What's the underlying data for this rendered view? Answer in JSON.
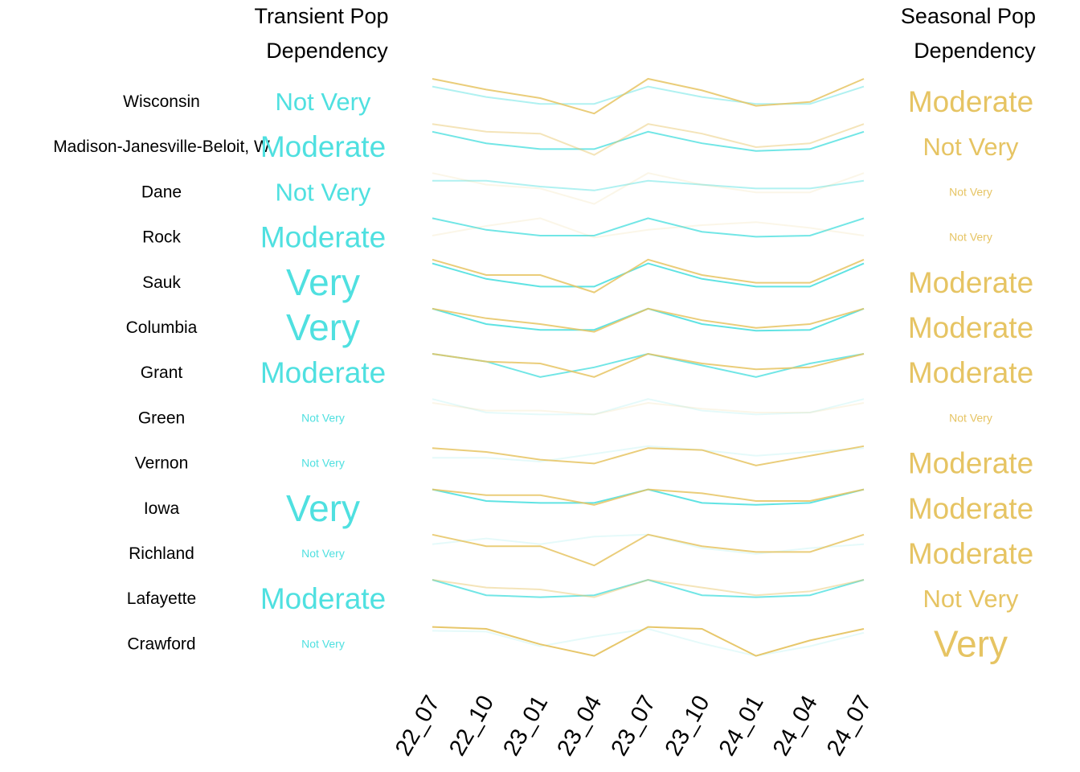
{
  "chart_data": {
    "type": "line",
    "headers": {
      "transient": [
        "Transient Pop",
        "Dependency"
      ],
      "seasonal": [
        "Seasonal Pop",
        "Dependency"
      ]
    },
    "colors": {
      "transient": "#4fe0e0",
      "seasonal": "#e6c463"
    },
    "x": [
      "22_07",
      "22_10",
      "23_01",
      "23_04",
      "23_07",
      "23_10",
      "24_01",
      "24_04",
      "24_07"
    ],
    "rows": [
      {
        "name": "Wisconsin",
        "transient_level": "Not Very",
        "seasonal_level": "Moderate",
        "transient": [
          0.8,
          0.53,
          0.35,
          0.35,
          0.8,
          0.53,
          0.35,
          0.35,
          0.8
        ],
        "seasonal": [
          1.0,
          0.72,
          0.5,
          0.1,
          1.0,
          0.7,
          0.3,
          0.4,
          1.0
        ]
      },
      {
        "name": "Madison-Janesville-Beloit, W",
        "transient_level": "Moderate",
        "seasonal_level": "Not Very",
        "transient": [
          0.8,
          0.5,
          0.35,
          0.35,
          0.8,
          0.5,
          0.3,
          0.35,
          0.8
        ],
        "seasonal": [
          1.0,
          0.8,
          0.75,
          0.2,
          1.0,
          0.75,
          0.4,
          0.5,
          1.0
        ]
      },
      {
        "name": "Dane",
        "transient_level": "Not Very",
        "seasonal_level": "Not Very",
        "transient": [
          0.7,
          0.7,
          0.55,
          0.45,
          0.7,
          0.6,
          0.5,
          0.5,
          0.7
        ],
        "seasonal": [
          0.9,
          0.6,
          0.5,
          0.1,
          0.9,
          0.6,
          0.4,
          0.4,
          0.9
        ]
      },
      {
        "name": "Rock",
        "transient_level": "Moderate",
        "seasonal_level": "Not Very",
        "transient": [
          0.9,
          0.6,
          0.45,
          0.45,
          0.9,
          0.55,
          0.42,
          0.45,
          0.9
        ],
        "seasonal": [
          0.45,
          0.7,
          0.9,
          0.4,
          0.6,
          0.72,
          0.8,
          0.65,
          0.45
        ]
      },
      {
        "name": "Sauk",
        "transient_level": "Very",
        "seasonal_level": "Moderate",
        "transient": [
          0.9,
          0.5,
          0.3,
          0.3,
          0.9,
          0.5,
          0.3,
          0.3,
          0.9
        ],
        "seasonal": [
          1.0,
          0.6,
          0.6,
          0.15,
          1.0,
          0.6,
          0.4,
          0.4,
          1.0
        ]
      },
      {
        "name": "Columbia",
        "transient_level": "Very",
        "seasonal_level": "Moderate",
        "transient": [
          0.9,
          0.5,
          0.35,
          0.35,
          0.9,
          0.5,
          0.33,
          0.35,
          0.9
        ],
        "seasonal": [
          0.9,
          0.65,
          0.5,
          0.3,
          0.9,
          0.6,
          0.4,
          0.5,
          0.9
        ]
      },
      {
        "name": "Grant",
        "transient_level": "Moderate",
        "seasonal_level": "Moderate",
        "transient": [
          0.9,
          0.7,
          0.3,
          0.55,
          0.9,
          0.6,
          0.3,
          0.65,
          0.9
        ],
        "seasonal": [
          0.9,
          0.7,
          0.65,
          0.3,
          0.9,
          0.65,
          0.5,
          0.55,
          0.9
        ]
      },
      {
        "name": "Green",
        "transient_level": "Not Very",
        "seasonal_level": "Not Very",
        "transient": [
          0.9,
          0.55,
          0.5,
          0.5,
          0.9,
          0.6,
          0.5,
          0.55,
          0.9
        ],
        "seasonal": [
          0.8,
          0.6,
          0.6,
          0.5,
          0.8,
          0.65,
          0.55,
          0.55,
          0.8
        ]
      },
      {
        "name": "Vernon",
        "transient_level": "Not Very",
        "seasonal_level": "Moderate",
        "transient": [
          0.55,
          0.55,
          0.45,
          0.65,
          0.85,
          0.75,
          0.6,
          0.7,
          0.8
        ],
        "seasonal": [
          0.8,
          0.7,
          0.5,
          0.4,
          0.8,
          0.75,
          0.35,
          0.6,
          0.85
        ]
      },
      {
        "name": "Iowa",
        "transient_level": "Very",
        "seasonal_level": "Moderate",
        "transient": [
          0.9,
          0.6,
          0.55,
          0.55,
          0.9,
          0.55,
          0.5,
          0.55,
          0.9
        ],
        "seasonal": [
          0.9,
          0.75,
          0.75,
          0.5,
          0.9,
          0.8,
          0.6,
          0.6,
          0.9
        ]
      },
      {
        "name": "Richland",
        "transient_level": "Not Very",
        "seasonal_level": "Moderate",
        "transient": [
          0.65,
          0.8,
          0.65,
          0.85,
          0.9,
          0.55,
          0.4,
          0.55,
          0.65
        ],
        "seasonal": [
          0.9,
          0.6,
          0.6,
          0.1,
          0.9,
          0.6,
          0.45,
          0.45,
          0.9
        ]
      },
      {
        "name": "Lafayette",
        "transient_level": "Moderate",
        "seasonal_level": "Not Very",
        "transient": [
          0.9,
          0.5,
          0.45,
          0.5,
          0.9,
          0.5,
          0.45,
          0.5,
          0.9
        ],
        "seasonal": [
          0.9,
          0.7,
          0.65,
          0.45,
          0.9,
          0.7,
          0.5,
          0.6,
          0.9
        ]
      },
      {
        "name": "Crawford",
        "transient_level": "Not Very",
        "seasonal_level": "Very",
        "transient": [
          0.75,
          0.73,
          0.35,
          0.6,
          0.8,
          0.42,
          0.1,
          0.35,
          0.7
        ],
        "seasonal": [
          0.85,
          0.8,
          0.4,
          0.1,
          0.85,
          0.8,
          0.1,
          0.5,
          0.8
        ]
      }
    ],
    "level_style": {
      "Very": {
        "opacity": 1.0
      },
      "Moderate": {
        "opacity": 0.85
      },
      "Not Very": {
        "opacity": 0.4
      }
    }
  }
}
